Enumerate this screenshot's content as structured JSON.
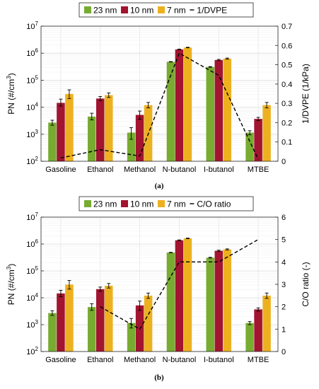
{
  "chart_data": [
    {
      "type": "bar",
      "panel_label": "(a)",
      "categories": [
        "Gasoline",
        "Ethanol",
        "Methanol",
        "N-butanol",
        "I-butanol",
        "MTBE"
      ],
      "series": [
        {
          "name": "23 nm",
          "color": "#77ac30",
          "values": [
            2700,
            4500,
            1150,
            480000,
            310000,
            1150
          ],
          "err_low": [
            2150,
            3400,
            650,
            470000,
            300000,
            950
          ],
          "err_high": [
            3300,
            6000,
            1750,
            490000,
            320000,
            1350
          ]
        },
        {
          "name": "10 nm",
          "color": "#a2142f",
          "values": [
            14500,
            21000,
            5200,
            1380000,
            560000,
            3700
          ],
          "err_low": [
            11000,
            17500,
            3600,
            1340000,
            530000,
            3200
          ],
          "err_high": [
            20000,
            25000,
            7200,
            1420000,
            590000,
            4200
          ]
        },
        {
          "name": "7 nm",
          "color": "#edb120",
          "values": [
            31000,
            28000,
            12000,
            1620000,
            630000,
            12000
          ],
          "err_low": [
            21000,
            23000,
            9500,
            1580000,
            600000,
            9500
          ],
          "err_high": [
            44000,
            34000,
            15000,
            1660000,
            660000,
            15000
          ]
        }
      ],
      "line": {
        "name": "1/DVPE",
        "values": [
          0.017,
          0.06,
          0.027,
          0.56,
          0.445,
          0.01
        ]
      },
      "ylabel": "PN (#/cm^3)",
      "y_log": true,
      "ylim": [
        100,
        10000000
      ],
      "y_ticks": [
        {
          "base": "10",
          "exp": "2",
          "value": 100
        },
        {
          "base": "10",
          "exp": "3",
          "value": 1000
        },
        {
          "base": "10",
          "exp": "4",
          "value": 10000
        },
        {
          "base": "10",
          "exp": "5",
          "value": 100000
        },
        {
          "base": "10",
          "exp": "6",
          "value": 1000000
        },
        {
          "base": "10",
          "exp": "7",
          "value": 10000000
        }
      ],
      "y2label": "1/DVPE (1/kPa)",
      "y2lim": [
        0,
        0.7
      ],
      "y2_ticks": [
        "0",
        "0.1",
        "0.2",
        "0.3",
        "0.4",
        "0.5",
        "0.6",
        "0.7"
      ],
      "grid": true,
      "legend_position": "top"
    },
    {
      "type": "bar",
      "panel_label": "(b)",
      "categories": [
        "Gasoline",
        "Ethanol",
        "Methanol",
        "N-butanol",
        "I-butanol",
        "MTBE"
      ],
      "series": [
        {
          "name": "23 nm",
          "color": "#77ac30",
          "values": [
            2700,
            4500,
            1150,
            480000,
            310000,
            1150
          ],
          "err_low": [
            2200,
            3400,
            750,
            470000,
            300000,
            1000
          ],
          "err_high": [
            3300,
            6000,
            1700,
            490000,
            320000,
            1300
          ]
        },
        {
          "name": "10 nm",
          "color": "#a2142f",
          "values": [
            14500,
            21000,
            5200,
            1380000,
            560000,
            3700
          ],
          "err_low": [
            11000,
            17500,
            3400,
            1340000,
            530000,
            3200
          ],
          "err_high": [
            19000,
            25000,
            7500,
            1420000,
            590000,
            4200
          ]
        },
        {
          "name": "7 nm",
          "color": "#edb120",
          "values": [
            31000,
            28000,
            12000,
            1620000,
            630000,
            12000
          ],
          "err_low": [
            21000,
            23000,
            9500,
            1580000,
            600000,
            9500
          ],
          "err_high": [
            44000,
            34000,
            15000,
            1660000,
            660000,
            15000
          ]
        }
      ],
      "line": {
        "name": "C/O ratio",
        "values": [
          null,
          2,
          1,
          4,
          4,
          5
        ]
      },
      "ylabel": "PN (#/cm^3)",
      "y_log": true,
      "ylim": [
        100,
        10000000
      ],
      "y_ticks": [
        {
          "base": "10",
          "exp": "2",
          "value": 100
        },
        {
          "base": "10",
          "exp": "3",
          "value": 1000
        },
        {
          "base": "10",
          "exp": "4",
          "value": 10000
        },
        {
          "base": "10",
          "exp": "5",
          "value": 100000
        },
        {
          "base": "10",
          "exp": "6",
          "value": 1000000
        },
        {
          "base": "10",
          "exp": "7",
          "value": 10000000
        }
      ],
      "y2label": "C/O ratio (-)",
      "y2lim": [
        0,
        6
      ],
      "y2_ticks": [
        "0",
        "1",
        "2",
        "3",
        "4",
        "5",
        "6"
      ],
      "grid": true,
      "legend_position": "top"
    }
  ]
}
